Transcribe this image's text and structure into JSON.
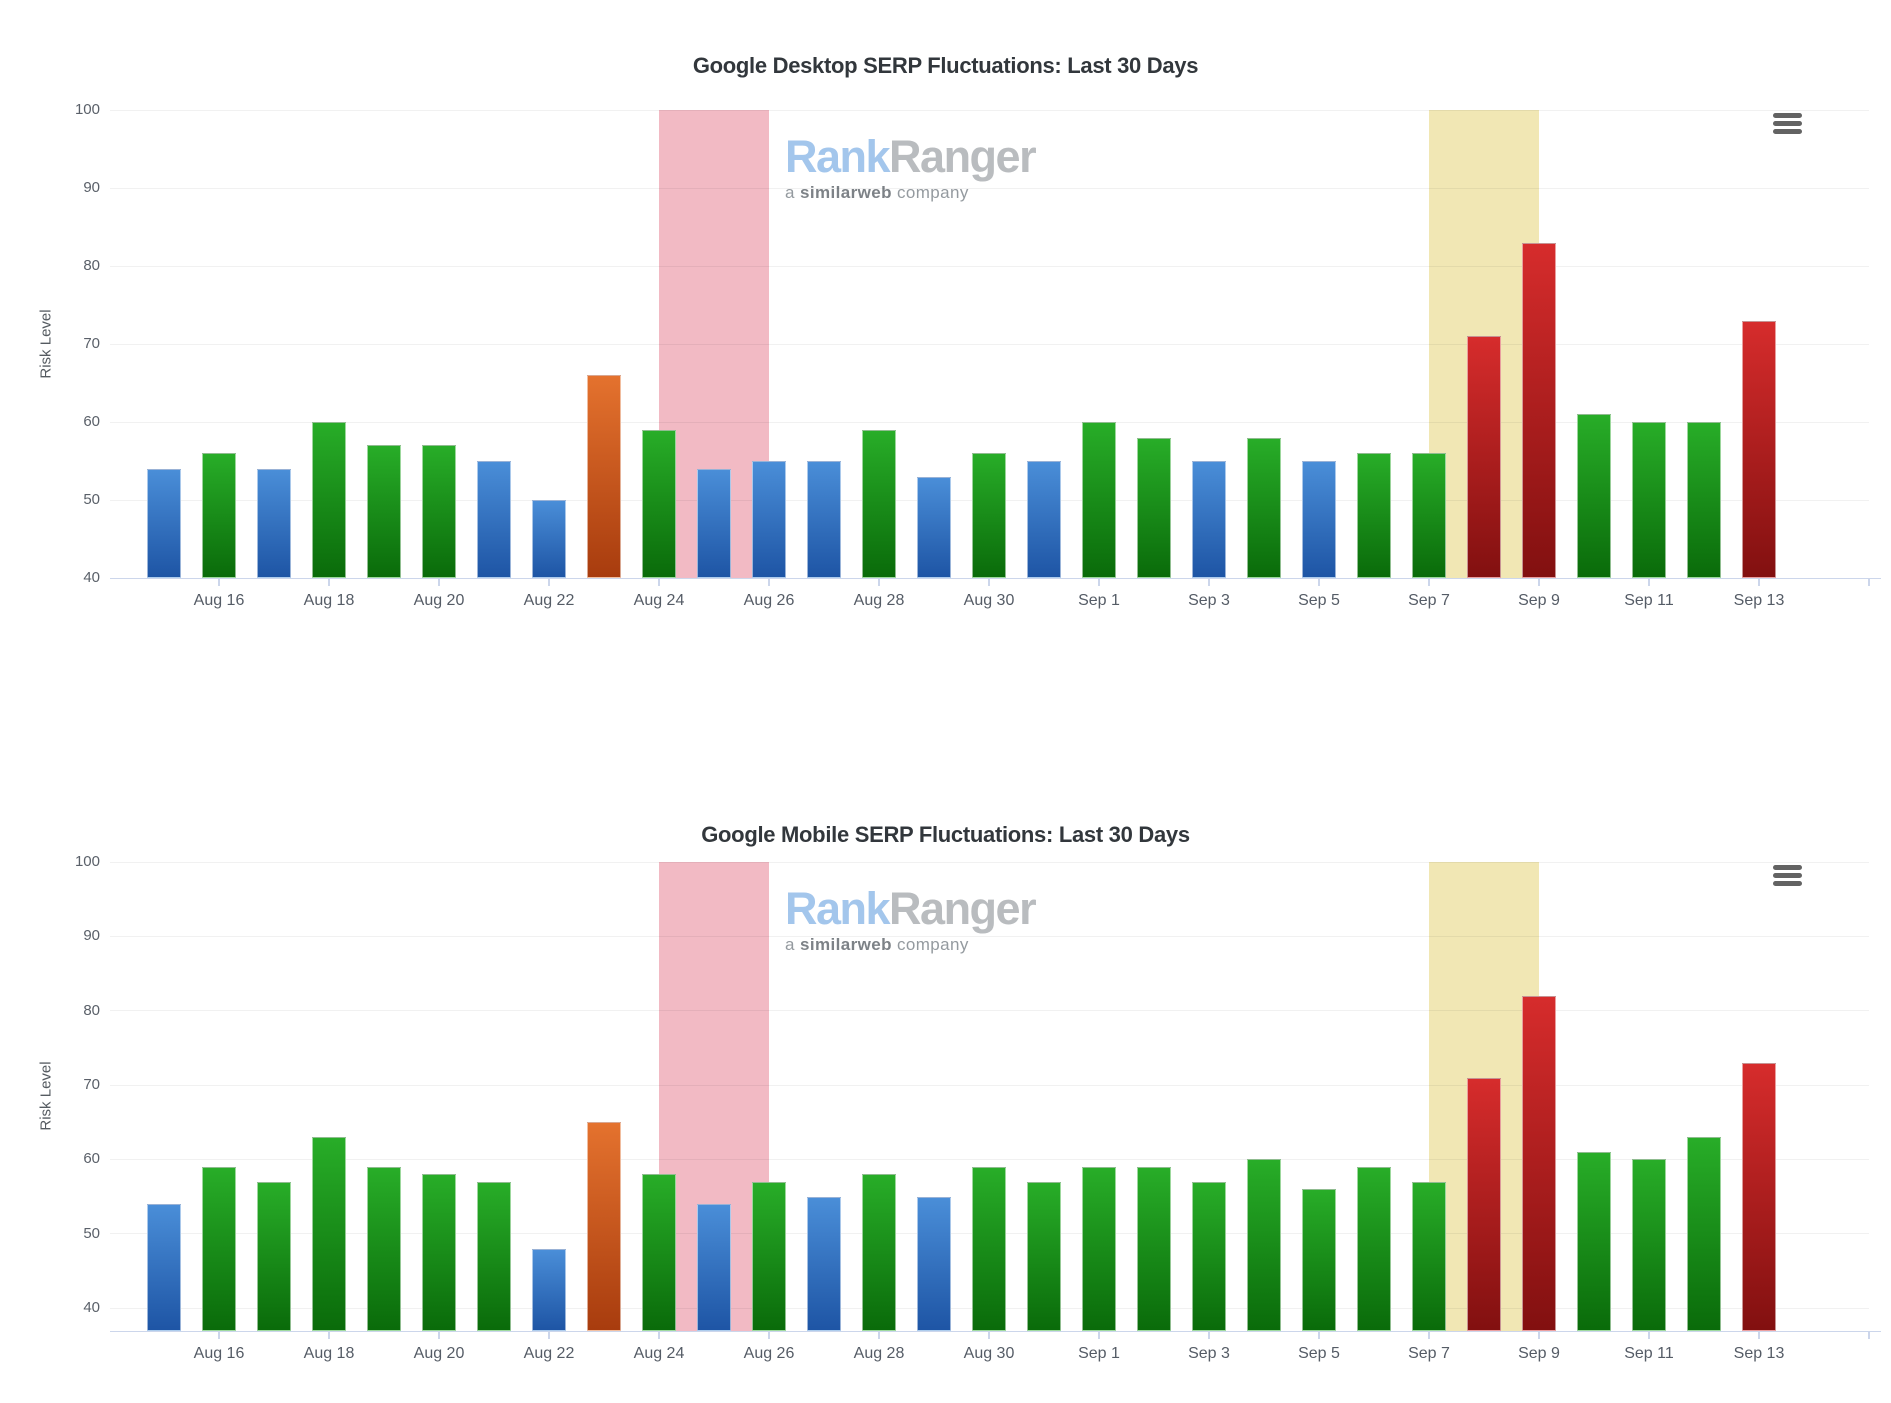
{
  "watermark": {
    "brand_blue": "Rank",
    "brand_gray": "Ranger",
    "tagline_prefix": "a",
    "tagline_bold": "similarweb",
    "tagline_suffix": "company"
  },
  "palette": {
    "blue_top": "#4a8ed8",
    "blue_bottom": "#1e55a5",
    "green_top": "#28ad28",
    "green_bottom": "#0a6b0a",
    "orange_top": "#e4722e",
    "orange_bottom": "#a83c0e",
    "red_top": "#d62c2c",
    "red_bottom": "#821010",
    "band_pink": "#f2bac4",
    "band_yellow": "#f1e7b4",
    "axis_line": "#ccd6eb",
    "grid_line": "#efefef",
    "title_color": "#32373c",
    "label_color": "#5a6069"
  },
  "chart_data": [
    {
      "type": "bar",
      "title": "Google Desktop SERP Fluctuations: Last 30 Days",
      "xlabel": "",
      "ylabel": "Risk Level",
      "ylim": [
        40,
        100
      ],
      "grid": true,
      "legend_position": "none",
      "y_ticks": [
        100,
        90,
        80,
        70,
        60,
        50,
        40
      ],
      "x_tick_labels": [
        "Aug 16",
        "Aug 18",
        "Aug 20",
        "Aug 22",
        "Aug 24",
        "Aug 26",
        "Aug 28",
        "Aug 30",
        "Sep 1",
        "Sep 3",
        "Sep 5",
        "Sep 7",
        "Sep 9",
        "Sep 11",
        "Sep 13"
      ],
      "categories": [
        "Aug 15",
        "Aug 16",
        "Aug 17",
        "Aug 18",
        "Aug 19",
        "Aug 20",
        "Aug 21",
        "Aug 22",
        "Aug 23",
        "Aug 24",
        "Aug 25",
        "Aug 26",
        "Aug 27",
        "Aug 28",
        "Aug 29",
        "Aug 30",
        "Aug 31",
        "Sep 1",
        "Sep 2",
        "Sep 3",
        "Sep 4",
        "Sep 5",
        "Sep 6",
        "Sep 7",
        "Sep 8",
        "Sep 9",
        "Sep 10",
        "Sep 11",
        "Sep 12",
        "Sep 13"
      ],
      "values": [
        54,
        56,
        54,
        60,
        57,
        57,
        55,
        50,
        66,
        59,
        54,
        55,
        55,
        59,
        53,
        56,
        55,
        60,
        58,
        55,
        58,
        55,
        56,
        56,
        71,
        83,
        61,
        60,
        60,
        73
      ],
      "point_colors": [
        "blue",
        "green",
        "blue",
        "green",
        "green",
        "green",
        "blue",
        "blue",
        "orange",
        "green",
        "blue",
        "blue",
        "blue",
        "green",
        "blue",
        "green",
        "blue",
        "green",
        "green",
        "blue",
        "green",
        "blue",
        "green",
        "green",
        "red",
        "red",
        "green",
        "green",
        "green",
        "red"
      ],
      "plot_bands": [
        {
          "name": "pink-highlight-band",
          "from": "Aug 24",
          "to": "Aug 26",
          "color_key": "band_pink"
        },
        {
          "name": "yellow-highlight-band",
          "from": "Sep 7",
          "to": "Sep 9",
          "color_key": "band_yellow"
        }
      ]
    },
    {
      "type": "bar",
      "title": "Google Mobile SERP Fluctuations: Last 30 Days",
      "xlabel": "",
      "ylabel": "Risk Level",
      "ylim": [
        37,
        100
      ],
      "grid": true,
      "legend_position": "none",
      "y_ticks": [
        100,
        90,
        80,
        70,
        60,
        50,
        40
      ],
      "x_tick_labels": [
        "Aug 16",
        "Aug 18",
        "Aug 20",
        "Aug 22",
        "Aug 24",
        "Aug 26",
        "Aug 28",
        "Aug 30",
        "Sep 1",
        "Sep 3",
        "Sep 5",
        "Sep 7",
        "Sep 9",
        "Sep 11",
        "Sep 13"
      ],
      "categories": [
        "Aug 15",
        "Aug 16",
        "Aug 17",
        "Aug 18",
        "Aug 19",
        "Aug 20",
        "Aug 21",
        "Aug 22",
        "Aug 23",
        "Aug 24",
        "Aug 25",
        "Aug 26",
        "Aug 27",
        "Aug 28",
        "Aug 29",
        "Aug 30",
        "Aug 31",
        "Sep 1",
        "Sep 2",
        "Sep 3",
        "Sep 4",
        "Sep 5",
        "Sep 6",
        "Sep 7",
        "Sep 8",
        "Sep 9",
        "Sep 10",
        "Sep 11",
        "Sep 12",
        "Sep 13"
      ],
      "values": [
        54,
        59,
        57,
        63,
        59,
        58,
        57,
        48,
        65,
        58,
        54,
        57,
        55,
        58,
        55,
        59,
        57,
        59,
        59,
        57,
        60,
        56,
        59,
        57,
        71,
        82,
        61,
        60,
        63,
        73
      ],
      "point_colors": [
        "blue",
        "green",
        "green",
        "green",
        "green",
        "green",
        "green",
        "blue",
        "orange",
        "green",
        "blue",
        "green",
        "blue",
        "green",
        "blue",
        "green",
        "green",
        "green",
        "green",
        "green",
        "green",
        "green",
        "green",
        "green",
        "red",
        "red",
        "green",
        "green",
        "green",
        "red"
      ],
      "plot_bands": [
        {
          "name": "pink-highlight-band",
          "from": "Aug 24",
          "to": "Aug 26",
          "color_key": "band_pink"
        },
        {
          "name": "yellow-highlight-band",
          "from": "Sep 7",
          "to": "Sep 9",
          "color_key": "band_yellow"
        }
      ]
    }
  ]
}
